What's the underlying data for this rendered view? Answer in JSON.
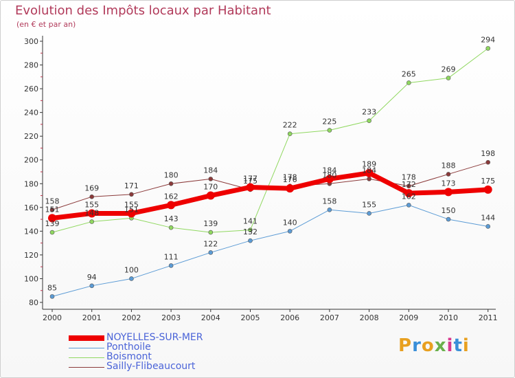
{
  "title": "Evolution des Impôts locaux par Habitant",
  "subtitle": "(en € et par an)",
  "logo": {
    "text": "Proxiti",
    "colors": [
      "#e8a020",
      "#3a8fd8",
      "#e8a020",
      "#6ab04c",
      "#d83a8f",
      "#3a8fd8",
      "#e8a020"
    ]
  },
  "chart_data": {
    "type": "line",
    "title": "Evolution des Impôts locaux par Habitant",
    "subtitle": "(en € et par an)",
    "xlabel": "",
    "ylabel": "",
    "ylim": [
      80,
      300
    ],
    "y_ticks": [
      80,
      100,
      120,
      140,
      160,
      180,
      200,
      220,
      240,
      260,
      280,
      300
    ],
    "categories": [
      "2000",
      "2001",
      "2002",
      "2003",
      "2004",
      "2005",
      "2006",
      "2007",
      "2008",
      "2009",
      "2010",
      "2011"
    ],
    "grid": false,
    "legend_position": "bottom-left",
    "series": [
      {
        "name": "NOYELLES-SUR-MER",
        "color": "#ee0000",
        "values": [
          151,
          155,
          155,
          162,
          170,
          177,
          176,
          184,
          189,
          172,
          173,
          175
        ],
        "labels": [
          "151",
          "155",
          "155",
          "162",
          "170",
          "177",
          "176",
          "184",
          "189",
          "172",
          "173",
          "175"
        ]
      },
      {
        "name": "Ponthoile",
        "color": "#5b9bd5",
        "values": [
          85,
          94,
          100,
          111,
          122,
          132,
          140,
          158,
          155,
          162,
          150,
          144
        ],
        "labels": [
          "85",
          "94",
          "100",
          "111",
          "122",
          "132",
          "140",
          "158",
          "155",
          "162",
          "150",
          "144"
        ]
      },
      {
        "name": "Boismont",
        "color": "#90d860",
        "values": [
          139,
          148,
          151,
          143,
          139,
          141,
          222,
          225,
          233,
          265,
          269,
          294
        ],
        "labels": [
          "139",
          "148",
          "151",
          "143",
          "139",
          "141",
          "222",
          "225",
          "233",
          "265",
          "269",
          "294"
        ]
      },
      {
        "name": "Sailly-Flibeaucourt",
        "color": "#8b3a3a",
        "values": [
          158,
          169,
          171,
          180,
          184,
          175,
          178,
          180,
          184,
          178,
          188,
          198
        ],
        "labels": [
          "158",
          "169",
          "171",
          "180",
          "184",
          "175",
          "178",
          "180",
          "184",
          "178",
          "188",
          "198"
        ]
      }
    ]
  }
}
